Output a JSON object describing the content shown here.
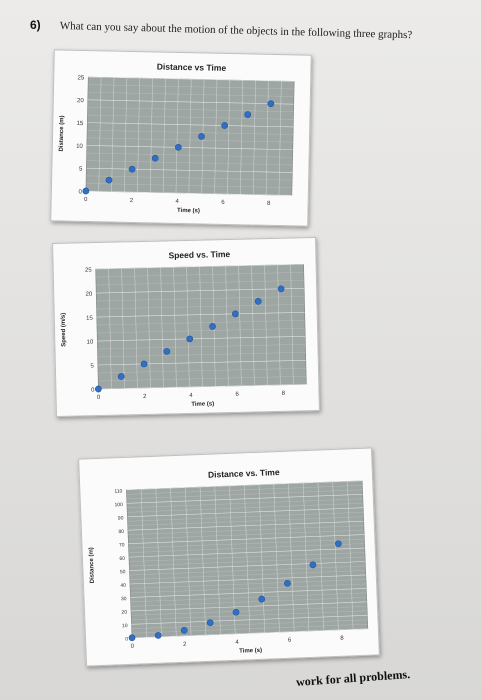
{
  "question": {
    "number": "6)",
    "text": "What can you say about the motion of the objects in the following three graphs?"
  },
  "footer": {
    "text": "work for all problems."
  },
  "colors": {
    "plot_bg": "#9ea6a4",
    "grid": "#e8ecec",
    "point": "#2f6fc6"
  },
  "chart_data": [
    {
      "type": "scatter",
      "title": "Distance vs Time",
      "xlabel": "Time (s)",
      "ylabel": "Distance (m)",
      "xlim": [
        0,
        9
      ],
      "ylim": [
        0,
        25
      ],
      "x_ticks": [
        "0",
        "2",
        "4",
        "6",
        "8"
      ],
      "y_ticks": [
        "0",
        "5",
        "10",
        "15",
        "20",
        "25"
      ],
      "grid": true,
      "series": [
        {
          "x": [
            0,
            1,
            2,
            3,
            4,
            5,
            6,
            7,
            8
          ],
          "y": [
            0,
            2.5,
            5,
            7.5,
            10,
            12.5,
            15,
            17.5,
            20
          ]
        }
      ]
    },
    {
      "type": "scatter",
      "title": "Speed vs. Time",
      "xlabel": "Time (s)",
      "ylabel": "Speed (m/s)",
      "xlim": [
        0,
        9
      ],
      "ylim": [
        0,
        25
      ],
      "x_ticks": [
        "0",
        "2",
        "4",
        "6",
        "8"
      ],
      "y_ticks": [
        "0",
        "5",
        "10",
        "15",
        "20",
        "25"
      ],
      "grid": true,
      "series": [
        {
          "x": [
            0,
            1,
            2,
            3,
            4,
            5,
            6,
            7,
            8
          ],
          "y": [
            0,
            2.5,
            5,
            7.5,
            10,
            12.5,
            15,
            17.5,
            20
          ]
        }
      ]
    },
    {
      "type": "scatter",
      "title": "Distance vs. Time",
      "xlabel": "Time (s)",
      "ylabel": "Distance (m)",
      "xlim": [
        0,
        9
      ],
      "ylim": [
        0,
        110
      ],
      "x_ticks": [
        "0",
        "2",
        "4",
        "6",
        "8"
      ],
      "y_ticks": [
        "0",
        "10",
        "20",
        "30",
        "40",
        "50",
        "60",
        "70",
        "80",
        "90",
        "100",
        "110"
      ],
      "grid": true,
      "series": [
        {
          "x": [
            0,
            1,
            2,
            3,
            4,
            5,
            6,
            7,
            8
          ],
          "y": [
            0,
            1,
            4,
            9,
            16,
            25,
            36,
            49,
            64
          ]
        }
      ]
    }
  ]
}
